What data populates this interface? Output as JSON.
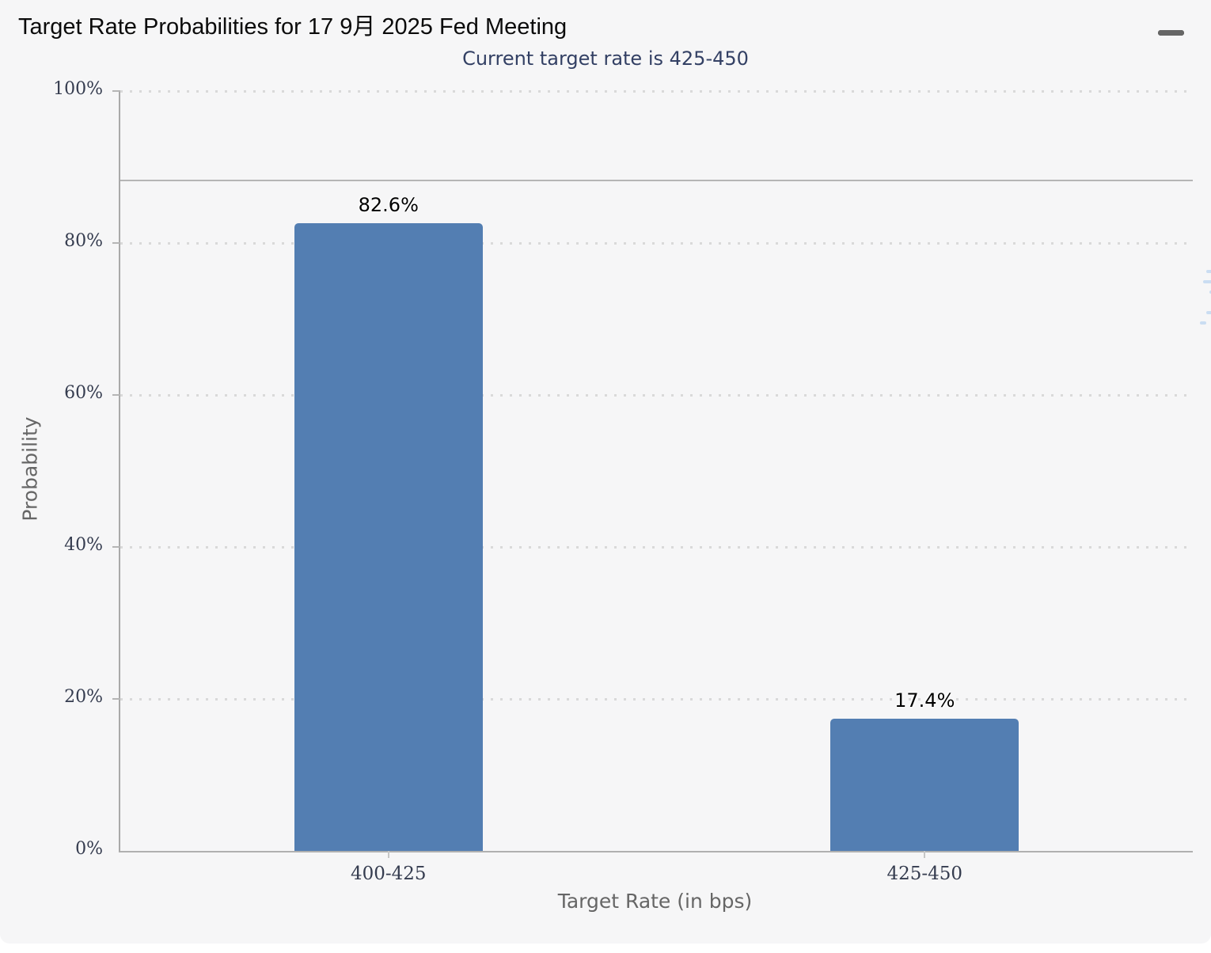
{
  "header": {
    "title": "Target Rate Probabilities for 17 9月 2025 Fed Meeting",
    "menu_icon": "hamburger-icon"
  },
  "colors": {
    "bar": "#537eb2",
    "subtitle": "#334064",
    "axis_line": "#b0b0b0",
    "tick_label": "#353c4f",
    "axis_title": "#666666",
    "panel_background": "#f6f6f7"
  },
  "chart_data": {
    "type": "bar",
    "title": "Target Rate Probabilities for 17 9月 2025 Fed Meeting",
    "subtitle": "Current target rate is 425-450",
    "categories": [
      "400-425",
      "425-450"
    ],
    "values": [
      82.6,
      17.4
    ],
    "data_labels": [
      "82.6%",
      "17.4%"
    ],
    "xlabel": "Target Rate (in bps)",
    "ylabel": "Probability",
    "ylim": [
      0,
      100
    ],
    "yticks": [
      0,
      20,
      40,
      60,
      80,
      100
    ],
    "ytick_labels": [
      "0%",
      "20%",
      "40%",
      "60%",
      "80%",
      "100%"
    ],
    "grid": "dotted horizontal gridlines at each 20%",
    "legend": "none",
    "reference_line_percent": 88.2,
    "bar_color": "#537eb2",
    "watermark": "Q"
  }
}
